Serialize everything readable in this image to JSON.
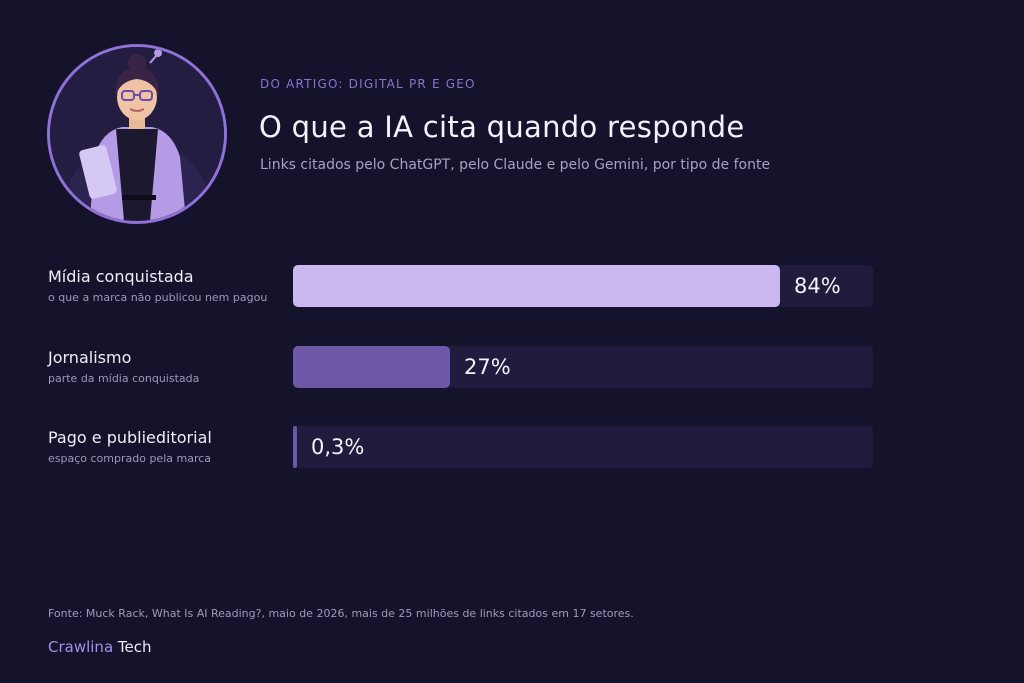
{
  "header": {
    "kicker": "DO ARTIGO: DIGITAL PR E GEO",
    "title": "O que a IA cita quando responde",
    "subtitle": "Links citados pelo ChatGPT, pelo Claude e pelo Gemini, por tipo de fonte"
  },
  "chart_data": {
    "type": "bar",
    "orientation": "horizontal",
    "title": "O que a IA cita quando responde",
    "subtitle": "Links citados pelo ChatGPT, pelo Claude e pelo Gemini, por tipo de fonte",
    "unit": "%",
    "xlim": [
      0,
      100
    ],
    "grid": false,
    "categories": [
      "Mídia conquistada",
      "Jornalismo",
      "Pago e publieditorial"
    ],
    "descriptions": [
      "o que a marca não publicou nem pagou",
      "parte da mídia conquistada",
      "espaço comprado pela marca"
    ],
    "values": [
      84,
      27,
      0.3
    ],
    "value_labels": [
      "84%",
      "27%",
      "0,3%"
    ],
    "bar_colors": [
      "#cbb8f1",
      "#6c58a6",
      "#6c58a6"
    ],
    "track_color": "#211c3d"
  },
  "footer": {
    "source": "Fonte: Muck Rack, What Is AI Reading?, maio de 2026, mais de 25 milhões de links citados em 17 setores.",
    "brand_part1": "Crawlina",
    "brand_part2": "Tech"
  },
  "colors": {
    "background": "#15132b",
    "accent": "#8a73cf",
    "avatar_ring": "#8f72d8"
  },
  "icons": {
    "avatar": "illustrated-woman-avatar"
  }
}
